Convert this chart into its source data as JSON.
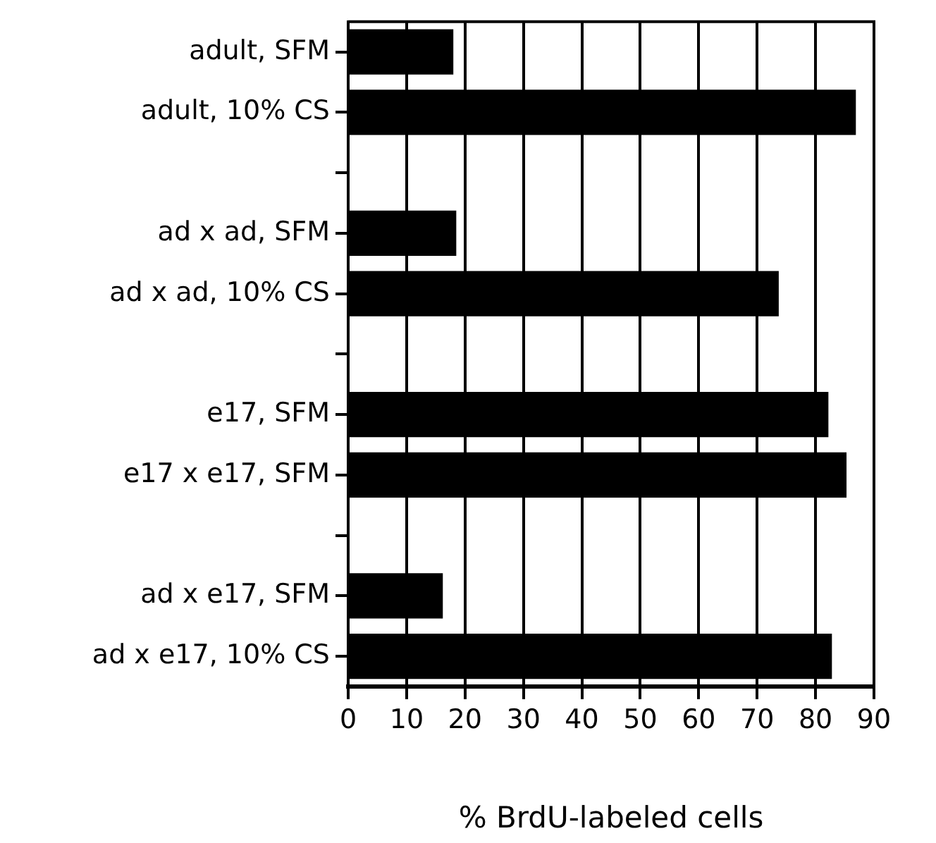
{
  "chart_data": {
    "type": "bar",
    "orientation": "horizontal",
    "xlabel": "% BrdU-labeled cells",
    "categories": [
      "adult, SFM",
      "adult, 10% CS",
      null,
      "ad x ad, SFM",
      "ad x ad, 10% CS",
      null,
      "e17, SFM",
      "e17 x e17, SFM",
      null,
      "ad x e17, SFM",
      "ad x e17, 10% CS"
    ],
    "values": [
      18.0,
      86.9,
      null,
      18.5,
      73.7,
      null,
      82.2,
      85.3,
      null,
      16.2,
      82.8
    ],
    "color": "#000000",
    "xlim": [
      0,
      90
    ],
    "xticks": [
      0,
      10,
      20,
      30,
      40,
      50,
      60,
      70,
      80,
      90
    ],
    "grid": "x",
    "legend": false
  }
}
